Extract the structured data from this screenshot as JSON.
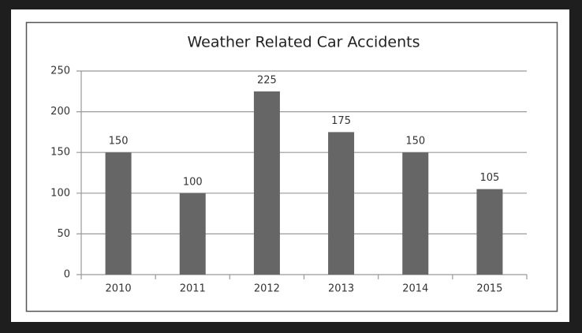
{
  "chart_data": {
    "type": "bar",
    "title": "Weather Related Car Accidents",
    "categories": [
      "2010",
      "2011",
      "2012",
      "2013",
      "2014",
      "2015"
    ],
    "values": [
      150,
      100,
      225,
      175,
      150,
      105
    ],
    "color": "#666666",
    "ylim": [
      0,
      250
    ],
    "yticks": [
      0,
      50,
      100,
      150,
      200,
      250
    ],
    "grid": true
  }
}
